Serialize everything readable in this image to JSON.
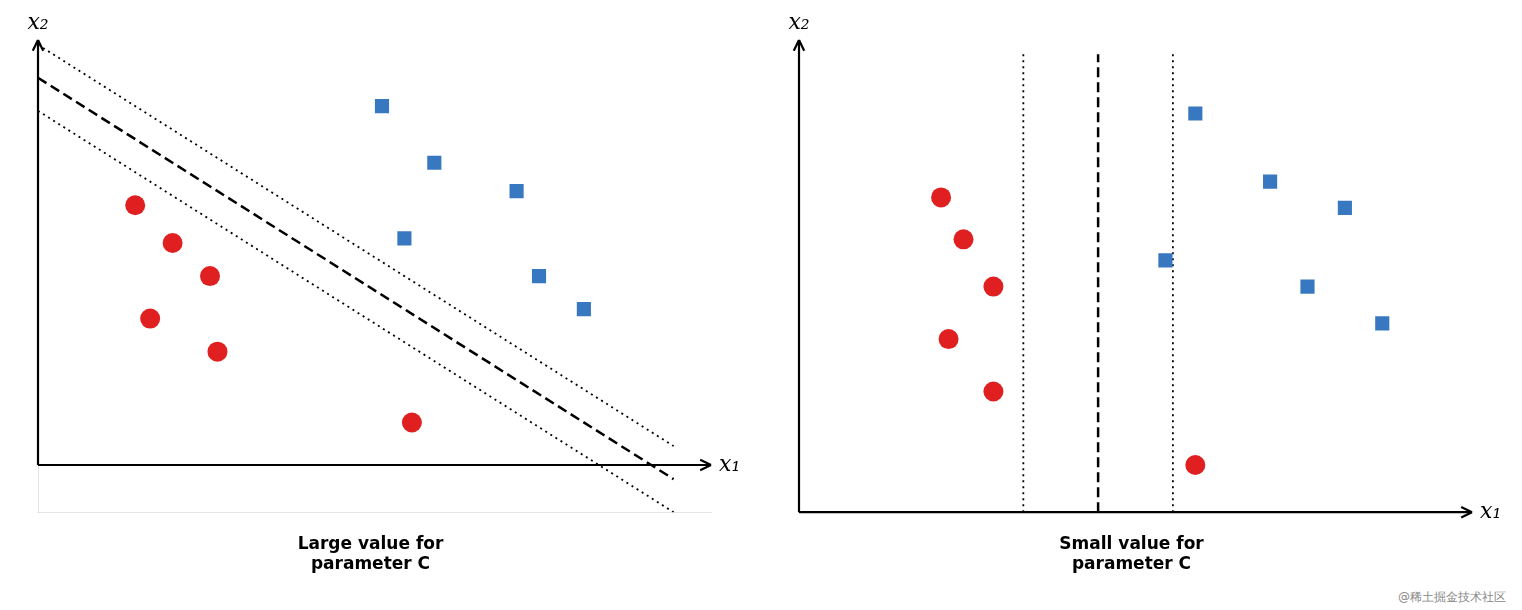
{
  "chart_data": [
    {
      "type": "scatter",
      "title": "Large value for\nparameter C",
      "xlabel": "x₁",
      "ylabel": "x₂",
      "xlim": [
        0,
        9
      ],
      "ylim": [
        -1,
        9
      ],
      "tick_labels": false,
      "grid": false,
      "series": [
        {
          "type": "scatter",
          "color": "#e02020",
          "marker": "circle",
          "x": [
            1.3,
            1.8,
            2.3,
            1.5,
            2.4,
            5.0
          ],
          "values": [
            5.5,
            4.7,
            4.0,
            3.1,
            2.4,
            0.9
          ]
        },
        {
          "type": "scatter",
          "color": "#3878c0",
          "marker": "square",
          "x": [
            4.6,
            5.3,
            6.4,
            4.9,
            6.7,
            7.3
          ],
          "values": [
            7.6,
            6.4,
            5.8,
            4.8,
            4.0,
            3.3
          ]
        },
        {
          "type": "line",
          "color": "#000000",
          "line_style": "dashed",
          "x": [
            0.0,
            8.5
          ],
          "values": [
            8.2,
            -0.3
          ]
        },
        {
          "type": "line",
          "color": "#000000",
          "line_style": "dotted",
          "x": [
            0.0,
            8.5
          ],
          "values": [
            8.9,
            0.4
          ]
        },
        {
          "type": "line",
          "color": "#000000",
          "line_style": "dotted",
          "x": [
            0.0,
            8.5
          ],
          "values": [
            7.5,
            -1.0
          ]
        }
      ]
    },
    {
      "type": "scatter",
      "title": "Small value for\nparameter C",
      "xlabel": "x₁",
      "ylabel": "x₂",
      "xlim": [
        0,
        9
      ],
      "ylim": [
        0,
        9
      ],
      "tick_labels": false,
      "grid": false,
      "annotations": [
        "@稀土掘金技术社区"
      ],
      "series": [
        {
          "type": "scatter",
          "color": "#e02020",
          "marker": "circle",
          "x": [
            1.9,
            2.2,
            2.6,
            2.0,
            2.6,
            5.3
          ],
          "values": [
            6.0,
            5.2,
            4.3,
            3.3,
            2.3,
            0.9
          ]
        },
        {
          "type": "scatter",
          "color": "#3878c0",
          "marker": "square",
          "x": [
            5.3,
            6.3,
            7.3,
            4.9,
            6.8,
            7.8
          ],
          "values": [
            7.6,
            6.3,
            5.8,
            4.8,
            4.3,
            3.6
          ]
        },
        {
          "type": "line",
          "color": "#000000",
          "line_style": "dotted",
          "x": [
            3.0,
            3.0
          ],
          "values": [
            0,
            8.73
          ]
        },
        {
          "type": "line",
          "color": "#000000",
          "line_style": "dotted",
          "x": [
            5.0,
            5.0
          ],
          "values": [
            0,
            8.73
          ]
        },
        {
          "type": "line",
          "color": "#000000",
          "line_style": "dashed",
          "x": [
            4.0,
            4.0
          ],
          "values": [
            0,
            8.73
          ]
        }
      ]
    }
  ]
}
